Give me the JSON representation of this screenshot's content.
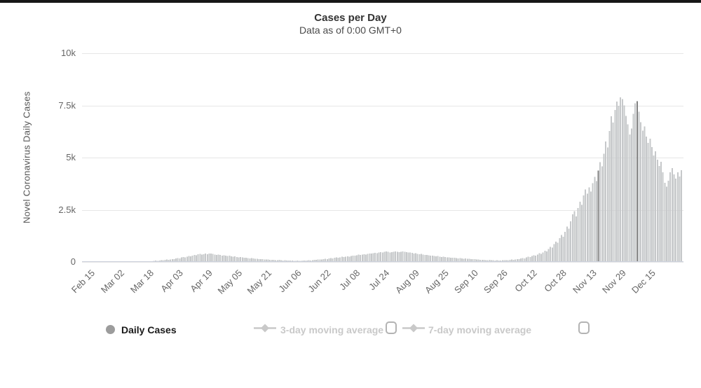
{
  "window": {
    "top_border_color": "#161616",
    "background": "#ffffff"
  },
  "chart": {
    "title": "Cases per Day",
    "subtitle": "Data as of 0:00 GMT+0",
    "y_axis_title": "Novel Coronavirus Daily Cases",
    "legend": {
      "items": [
        {
          "label": "Daily Cases",
          "marker": "circle",
          "checkbox": false,
          "active": true
        },
        {
          "label": "3-day moving average",
          "marker": "line-diamond",
          "checkbox": true,
          "active": false
        },
        {
          "label": "7-day moving average",
          "marker": "line-diamond",
          "checkbox": true,
          "active": false
        }
      ]
    },
    "colors": {
      "bar": "#c6c8ca",
      "bar_highlight": "#818181",
      "grid": "#e6e6e6",
      "axis_line": "#ccd1dd",
      "title_text": "#333333",
      "subtitle_text": "#4a4a4a",
      "axis_text": "#666666",
      "y_title_text": "#555555",
      "legend_active_text": "#1a1a1a",
      "legend_inactive": "#c9c9c9",
      "legend_circle": "#9c9c9c",
      "checkbox_border": "#b3b3b3"
    }
  },
  "chart_data": {
    "type": "bar",
    "title": "Cases per Day",
    "subtitle": "Data as of 0:00 GMT+0",
    "ylabel": "Novel Coronavirus Daily Cases",
    "ylim": [
      0,
      10000
    ],
    "y_ticks": [
      "0",
      "2.5k",
      "5k",
      "7.5k",
      "10k"
    ],
    "x_first_day": "Feb 15",
    "x_last_day": "Dec 31",
    "x_tick_interval_days": 16,
    "x_tick_labels": [
      "Feb 15",
      "Mar 02",
      "Mar 18",
      "Apr 03",
      "Apr 19",
      "May 05",
      "May 21",
      "Jun 06",
      "Jun 22",
      "Jul 08",
      "Jul 24",
      "Aug 09",
      "Aug 25",
      "Sep 10",
      "Sep 26",
      "Oct 12",
      "Oct 28",
      "Nov 13",
      "Nov 29",
      "Dec 15"
    ],
    "legend_entries": [
      "Daily Cases",
      "3-day moving average",
      "7-day moving average"
    ],
    "grid": true,
    "highlight_day_indices": [
      275,
      296
    ],
    "series": [
      {
        "name": "Daily Cases",
        "values": [
          0,
          0,
          0,
          0,
          0,
          1,
          0,
          0,
          2,
          1,
          0,
          3,
          2,
          4,
          5,
          3,
          6,
          8,
          5,
          10,
          12,
          9,
          14,
          16,
          12,
          18,
          22,
          19,
          25,
          30,
          28,
          35,
          42,
          38,
          52,
          60,
          55,
          70,
          85,
          78,
          95,
          110,
          100,
          125,
          140,
          130,
          160,
          185,
          170,
          210,
          240,
          220,
          260,
          290,
          270,
          310,
          340,
          320,
          365,
          385,
          350,
          370,
          395,
          365,
          400,
          410,
          385,
          360,
          340,
          355,
          330,
          310,
          320,
          300,
          285,
          295,
          270,
          255,
          265,
          240,
          225,
          235,
          210,
          195,
          205,
          185,
          170,
          180,
          160,
          150,
          155,
          140,
          130,
          135,
          120,
          110,
          115,
          100,
          95,
          105,
          90,
          85,
          95,
          80,
          75,
          85,
          70,
          65,
          60,
          70,
          55,
          50,
          60,
          45,
          55,
          65,
          60,
          70,
          80,
          75,
          90,
          100,
          95,
          110,
          125,
          115,
          135,
          150,
          140,
          160,
          180,
          170,
          195,
          215,
          200,
          225,
          245,
          230,
          255,
          275,
          260,
          290,
          310,
          295,
          320,
          345,
          330,
          355,
          375,
          360,
          390,
          410,
          395,
          420,
          440,
          425,
          450,
          470,
          455,
          480,
          500,
          485,
          460,
          475,
          490,
          505,
          480,
          465,
          495,
          510,
          490,
          470,
          450,
          460,
          430,
          410,
          420,
          390,
          370,
          380,
          350,
          330,
          340,
          315,
          300,
          310,
          285,
          270,
          280,
          255,
          240,
          250,
          230,
          215,
          225,
          205,
          195,
          200,
          185,
          175,
          180,
          165,
          155,
          160,
          145,
          150,
          140,
          130,
          135,
          120,
          110,
          100,
          95,
          105,
          90,
          85,
          95,
          80,
          85,
          75,
          80,
          70,
          75,
          85,
          80,
          90,
          85,
          95,
          110,
          105,
          125,
          140,
          130,
          160,
          185,
          175,
          220,
          260,
          240,
          280,
          320,
          300,
          360,
          420,
          390,
          460,
          540,
          510,
          620,
          720,
          680,
          850,
          980,
          920,
          1140,
          1290,
          1210,
          1440,
          1690,
          1590,
          1940,
          2280,
          2430,
          2180,
          2580,
          2880,
          2730,
          3180,
          3480,
          3280,
          3580,
          3380,
          3780,
          4080,
          3880,
          4380,
          4780,
          4580,
          5180,
          5780,
          5480,
          6280,
          6980,
          6680,
          7280,
          7680,
          7480,
          7880,
          7800,
          7500,
          7000,
          6600,
          6100,
          6400,
          7100,
          7600,
          7700,
          7200,
          6700,
          6300,
          6500,
          6000,
          5700,
          5900,
          5500,
          5100,
          5300,
          4900,
          4600,
          4800,
          4300,
          3800,
          3600,
          3900,
          4300,
          4500,
          4200,
          4000,
          4300,
          4100,
          4400
        ]
      }
    ]
  }
}
